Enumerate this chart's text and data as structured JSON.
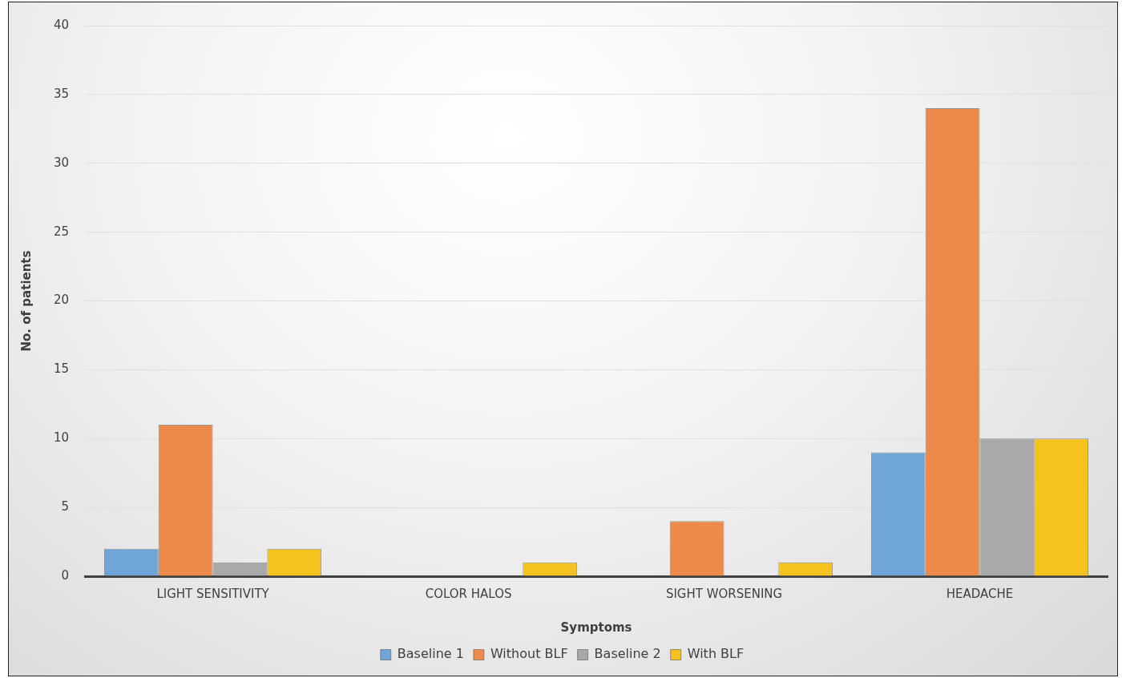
{
  "chart_data": {
    "type": "bar",
    "xlabel": "Symptoms",
    "ylabel": "No. of patients",
    "categories": [
      "LIGHT SENSITIVITY",
      "COLOR HALOS",
      "SIGHT WORSENING",
      "HEADACHE"
    ],
    "series": [
      {
        "name": "Baseline 1",
        "color": "#6fa5d8",
        "values": [
          2,
          0,
          0,
          9
        ]
      },
      {
        "name": "Without BLF",
        "color": "#ed8a4a",
        "values": [
          11,
          0,
          4,
          34
        ]
      },
      {
        "name": "Baseline 2",
        "color": "#a9a9a9",
        "values": [
          1,
          0,
          0,
          10
        ]
      },
      {
        "name": "With BLF",
        "color": "#f6c21e",
        "values": [
          2,
          1,
          1,
          10
        ]
      }
    ],
    "ylim": [
      0,
      40
    ],
    "yticks": [
      0,
      5,
      10,
      15,
      20,
      25,
      30,
      35,
      40
    ],
    "grid": "y",
    "legend": "bottom"
  }
}
